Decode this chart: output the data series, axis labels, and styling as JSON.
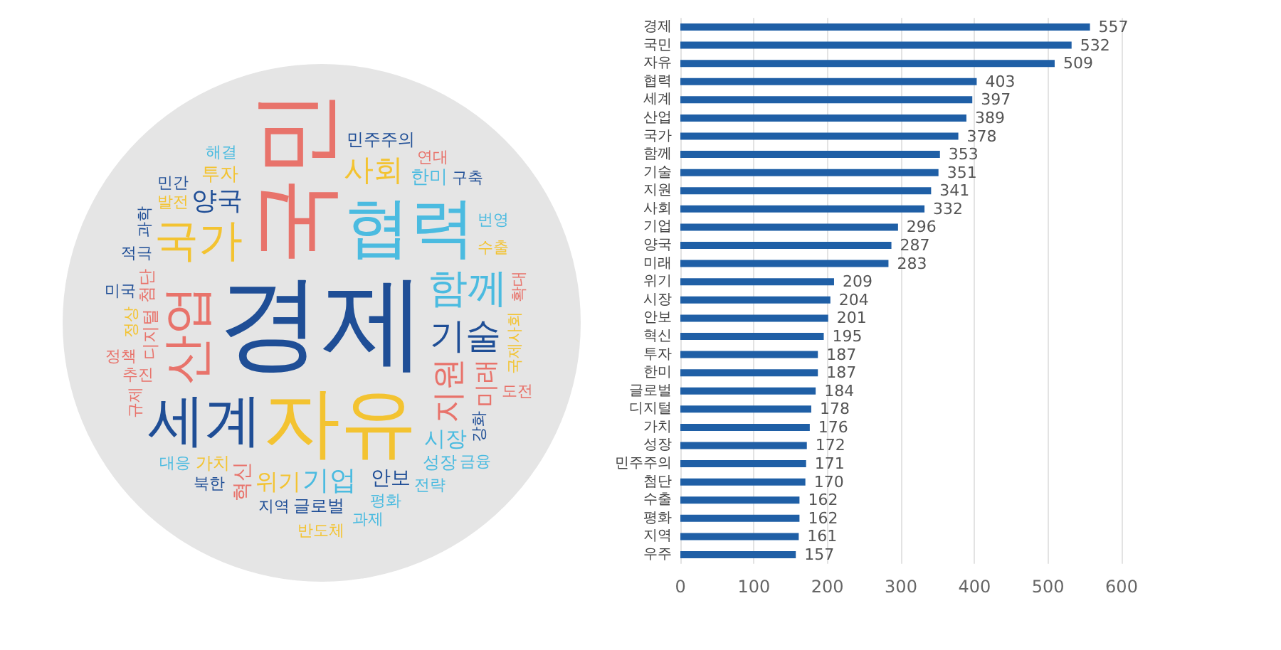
{
  "chart_data": [
    {
      "type": "other",
      "annotations": [
        "경제",
        "국민",
        "자유",
        "협력",
        "세계",
        "산업",
        "국가",
        "함께",
        "기술",
        "지원",
        "사회",
        "기업",
        "양국",
        "미래",
        "위기",
        "시장",
        "안보",
        "혁신",
        "투자",
        "한미",
        "글로벌",
        "디지털",
        "가치",
        "성장",
        "민주주의",
        "첨단",
        "수출",
        "평화",
        "지역",
        "강화",
        "추진",
        "발전",
        "전략",
        "국제사회",
        "북한",
        "적극",
        "해결",
        "정상",
        "연대",
        "번영",
        "과제",
        "확대",
        "대응",
        "정책",
        "미국",
        "규제",
        "민간",
        "구축",
        "도전",
        "과학",
        "금융",
        "반도체"
      ],
      "colors": [
        "#1f4e96",
        "#e8736b",
        "#f3c331",
        "#4bbbe0",
        "#1f4e96",
        "#e8736b",
        "#f3c331",
        "#4bbbe0",
        "#1f4e96",
        "#e8736b",
        "#f3c331",
        "#4bbbe0",
        "#1f4e96",
        "#e8736b",
        "#f3c331",
        "#4bbbe0",
        "#1f4e96",
        "#e8736b",
        "#f3c331",
        "#4bbbe0",
        "#1f4e96",
        "#e8736b",
        "#f3c331",
        "#4bbbe0",
        "#1f4e96",
        "#e8736b",
        "#f3c331",
        "#4bbbe0",
        "#1f4e96",
        "#1f4e96",
        "#e8736b",
        "#f3c331",
        "#4bbbe0",
        "#f3c331",
        "#1f4e96",
        "#1f4e96",
        "#4bbbe0",
        "#f3c331",
        "#e8736b",
        "#4bbbe0",
        "#4bbbe0",
        "#e8736b",
        "#4bbbe0",
        "#e8736b",
        "#1f4e96",
        "#e8736b",
        "#1f4e96",
        "#1f4e96",
        "#e8736b",
        "#1f4e96",
        "#4bbbe0",
        "#f3c331"
      ]
    },
    {
      "type": "bar",
      "orientation": "horizontal",
      "categories": [
        "경제",
        "국민",
        "자유",
        "협력",
        "세계",
        "산업",
        "국가",
        "함께",
        "기술",
        "지원",
        "사회",
        "기업",
        "양국",
        "미래",
        "위기",
        "시장",
        "안보",
        "혁신",
        "투자",
        "한미",
        "글로벌",
        "디지털",
        "가치",
        "성장",
        "민주주의",
        "첨단",
        "수출",
        "평화",
        "지역",
        "우주"
      ],
      "values": [
        557,
        532,
        509,
        403,
        397,
        389,
        378,
        353,
        351,
        341,
        332,
        296,
        287,
        283,
        209,
        204,
        201,
        195,
        187,
        187,
        184,
        178,
        176,
        172,
        171,
        170,
        162,
        162,
        161,
        157
      ],
      "color": "#1f5fa6",
      "xlim": [
        0,
        600
      ],
      "xticks": [
        0,
        100,
        200,
        300,
        400,
        500,
        600
      ],
      "grid": "x",
      "data_labels": true
    }
  ]
}
